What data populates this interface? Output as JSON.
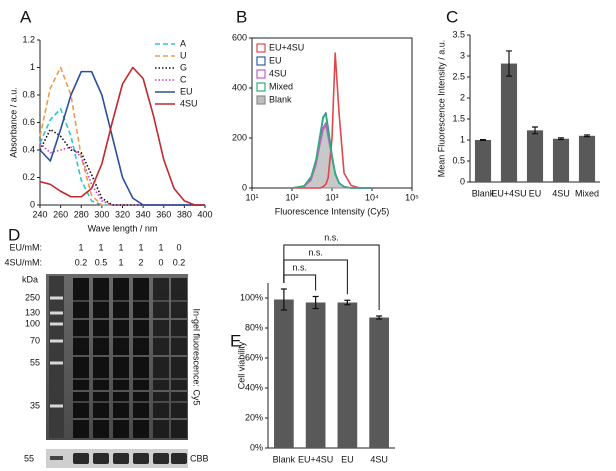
{
  "chart_data": [
    {
      "type": "line",
      "panel_label": "A",
      "ylabel": "Absorbance / a.u.",
      "xlabel": "Wave length / nm",
      "x": [
        240,
        250,
        260,
        270,
        280,
        290,
        300,
        310,
        320,
        330,
        340,
        350,
        360,
        370,
        380,
        390,
        400
      ],
      "xlim": [
        240,
        400
      ],
      "xticks": [
        240,
        260,
        280,
        300,
        320,
        340,
        360,
        380,
        400
      ],
      "ylim": [
        0,
        1.2
      ],
      "yticks": [
        0,
        0.2,
        0.4,
        0.6,
        0.8,
        1,
        1.2
      ],
      "legend": "upper right",
      "legend_marker": "line",
      "frame": false,
      "series": [
        {
          "name": "A",
          "color": "#2ec4d6",
          "dash": "dashed",
          "values": [
            0.45,
            0.62,
            0.7,
            0.5,
            0.18,
            0.03,
            0,
            0,
            0,
            0,
            0,
            0,
            0,
            0,
            0,
            0,
            0
          ]
        },
        {
          "name": "U",
          "color": "#f39a4a",
          "dash": "dashed",
          "values": [
            0.5,
            0.85,
            1.0,
            0.8,
            0.35,
            0.07,
            0,
            0,
            0,
            0,
            0,
            0,
            0,
            0,
            0,
            0,
            0
          ]
        },
        {
          "name": "G",
          "color": "#111111",
          "dash": "dotted",
          "values": [
            0.4,
            0.55,
            0.5,
            0.4,
            0.38,
            0.22,
            0.05,
            0,
            0,
            0,
            0,
            0,
            0,
            0,
            0,
            0,
            0
          ]
        },
        {
          "name": "C",
          "color": "#c03ccf",
          "dash": "dotted",
          "values": [
            0.45,
            0.38,
            0.4,
            0.42,
            0.35,
            0.15,
            0.03,
            0,
            0,
            0,
            0,
            0,
            0,
            0,
            0,
            0,
            0
          ]
        },
        {
          "name": "EU",
          "color": "#2d4fa0",
          "dash": "solid",
          "values": [
            0.4,
            0.32,
            0.55,
            0.8,
            0.97,
            0.97,
            0.8,
            0.5,
            0.2,
            0.05,
            0,
            0,
            0,
            0,
            0,
            0,
            0
          ]
        },
        {
          "name": "4SU",
          "color": "#c0282d",
          "dash": "solid",
          "values": [
            0.17,
            0.15,
            0.1,
            0.06,
            0.06,
            0.12,
            0.3,
            0.6,
            0.88,
            1.0,
            0.92,
            0.65,
            0.33,
            0.12,
            0.03,
            0,
            0
          ]
        }
      ]
    },
    {
      "type": "line",
      "panel_label": "B",
      "xlabel": "Fluorescence Intensity (Cy5)",
      "xscale": "log",
      "x": [
        100,
        200,
        300,
        400,
        500,
        600,
        700,
        800,
        1000,
        1200,
        1500,
        2000,
        3000,
        5000,
        10000
      ],
      "xlim": [
        10,
        100000
      ],
      "xticks": [
        {
          "value": 10,
          "label": "10¹"
        },
        {
          "value": 100,
          "label": "10²"
        },
        {
          "value": 1000,
          "label": "10³"
        },
        {
          "value": 10000,
          "label": "10⁴"
        },
        {
          "value": 100000,
          "label": "10⁵"
        }
      ],
      "ylim": [
        0,
        600
      ],
      "yticks": [
        0,
        200,
        400,
        600
      ],
      "legend": "upper left",
      "legend_marker": "box",
      "frame": true,
      "series": [
        {
          "name": "EU+4SU",
          "color": "#e0474c",
          "dash": "solid",
          "values": [
            0,
            0,
            0,
            0,
            0,
            5,
            15,
            40,
            200,
            540,
            300,
            60,
            10,
            0,
            0
          ]
        },
        {
          "name": "EU",
          "color": "#2f5fa8",
          "dash": "solid",
          "values": [
            0,
            8,
            40,
            110,
            200,
            280,
            300,
            240,
            130,
            60,
            20,
            5,
            0,
            0,
            0
          ]
        },
        {
          "name": "4SU",
          "color": "#c35fc6",
          "dash": "solid",
          "values": [
            0,
            5,
            35,
            100,
            180,
            240,
            260,
            210,
            120,
            60,
            20,
            5,
            0,
            0,
            0
          ]
        },
        {
          "name": "Mixed",
          "color": "#2fae7a",
          "dash": "solid",
          "values": [
            0,
            8,
            45,
            115,
            210,
            285,
            295,
            230,
            125,
            55,
            20,
            5,
            0,
            0,
            0
          ]
        },
        {
          "name": "Blank",
          "color": "#8c8c8c",
          "dash": "solid",
          "fill": true,
          "values": [
            0,
            5,
            30,
            90,
            170,
            230,
            250,
            200,
            120,
            60,
            20,
            5,
            0,
            0,
            0
          ]
        }
      ]
    },
    {
      "type": "bar",
      "panel_label": "C",
      "ylabel": "Mean Fluorescence Intensity / a.u.",
      "color": "#595959",
      "categories": [
        "Blank",
        "EU+4SU",
        "EU",
        "4SU",
        "Mixed"
      ],
      "values": [
        1.0,
        2.82,
        1.23,
        1.03,
        1.1
      ],
      "errors": [
        0.01,
        0.3,
        0.08,
        0.02,
        0.02
      ],
      "ylim": [
        0,
        3.5
      ],
      "yticks": [
        0,
        0.5,
        1,
        1.5,
        2,
        2.5,
        3,
        3.5
      ]
    },
    {
      "type": "bar",
      "panel_label": "E",
      "ylabel": "Cell viability",
      "color": "#595959",
      "categories": [
        "Blank",
        "EU+4SU",
        "EU",
        "4SU"
      ],
      "values": [
        99,
        97,
        97,
        87
      ],
      "errors": [
        7,
        4,
        1.5,
        1
      ],
      "ylim": [
        0,
        110
      ],
      "yticks": [
        {
          "value": 0,
          "label": "0%"
        },
        {
          "value": 20,
          "label": "20%"
        },
        {
          "value": 40,
          "label": "40%"
        },
        {
          "value": 60,
          "label": "60%"
        },
        {
          "value": 80,
          "label": "80%"
        },
        {
          "value": 100,
          "label": "100%"
        }
      ],
      "annotations": [
        "n.s.",
        "n.s.",
        "n.s."
      ]
    }
  ],
  "gel_panel": {
    "panel_label": "D",
    "row_labels": [
      "EU/mM:",
      "4SU/mM:"
    ],
    "eu": [
      1,
      1,
      1,
      1,
      1,
      0
    ],
    "su": [
      0.2,
      0.5,
      1,
      2,
      0,
      0.2
    ],
    "unit": "kDa",
    "markers": [
      250,
      130,
      100,
      70,
      55,
      35
    ],
    "side_label": "In-gel fluorescence: Cy5",
    "cbb_marker": 55,
    "cbb_label": "CBB"
  }
}
